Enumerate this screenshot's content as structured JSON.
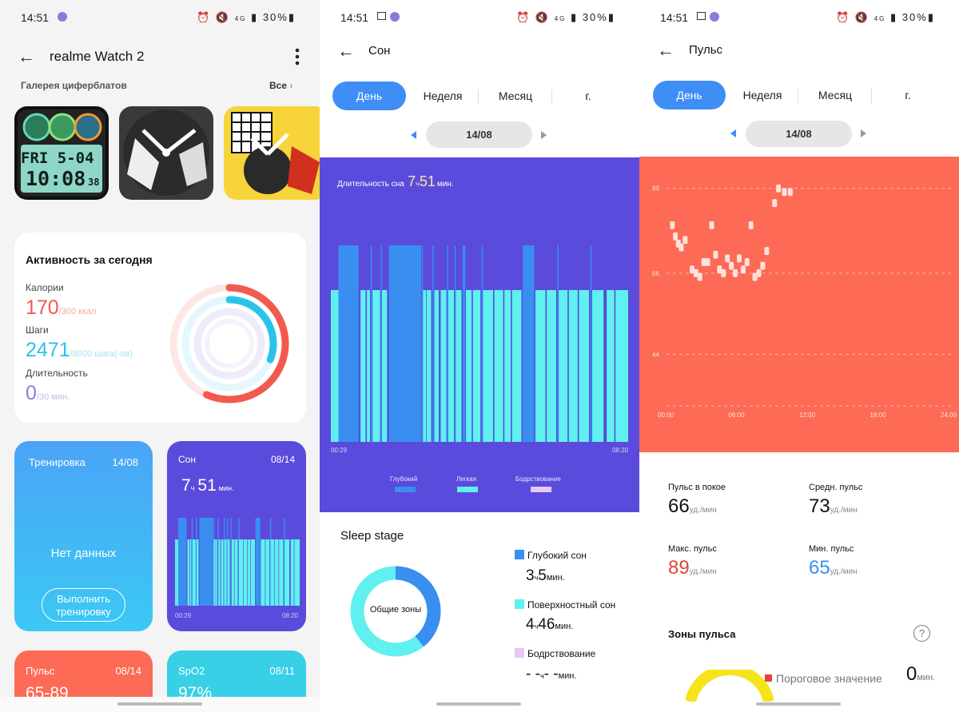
{
  "colors": {
    "accent": "#3f8ef5",
    "sleep_bg": "#5a4bdc",
    "deep": "#3a8ef0",
    "light": "#5ff0ef",
    "awake": "#e8c7f7",
    "pulse_bg": "#fd6a55",
    "calorie": "#f25a50",
    "steps": "#2bc3ea",
    "duration": "#8d7dd8"
  },
  "status": {
    "time": "14:51",
    "battery": "30%",
    "net": "4G"
  },
  "p1": {
    "title": "realme Watch 2",
    "gallery_label": "Галерея циферблатов",
    "gallery_all": "Все",
    "face1": {
      "day": "FRI 5-04",
      "time": "10:08",
      "sec": "38"
    },
    "activity": {
      "title": "Активность за сегодня",
      "cal_label": "Калории",
      "cal_value": "170",
      "cal_goal": "/300 ккал",
      "steps_label": "Шаги",
      "steps_value": "2471",
      "steps_goal": "/8000 шага(-ов)",
      "dur_label": "Длительность",
      "dur_value": "0",
      "dur_goal": "/30 мин."
    },
    "training": {
      "title": "Тренировка",
      "date": "14/08",
      "nodata": "Нет данных",
      "button": "Выполнить тренировку"
    },
    "sleep": {
      "title": "Сон",
      "date": "08/14",
      "hours": "7",
      "h_unit": "ч",
      "mins": "51",
      "m_unit": "мин.",
      "start": "00:29",
      "end": "08:20"
    },
    "pulse": {
      "title": "Пульс",
      "date": "08/14",
      "value": "65-89"
    },
    "spo2": {
      "title": "SpO2",
      "date": "08/11",
      "value": "97%"
    }
  },
  "p2": {
    "title": "Сон",
    "tabs": [
      "День",
      "Неделя",
      "Месяц",
      "г."
    ],
    "date": "14/08",
    "duration_label": "Длительность сна",
    "hours": "7",
    "h_unit": "ч",
    "mins": "51",
    "m_unit": "мин.",
    "start": "00:29",
    "end": "08:20",
    "legend": {
      "deep": "Глубокий",
      "light": "Легкая",
      "awake": "Бодрствование"
    },
    "stage_title": "Sleep stage",
    "donut_label": "Общие зоны",
    "deep_label": "Глубокий сон",
    "deep_h": "3",
    "deep_m": "5",
    "light_label": "Поверхностный сон",
    "light_h": "4",
    "light_m": "46",
    "awake_label": "Бодрствование",
    "awake_h": "- -",
    "awake_m": "- -",
    "h_unit_s": "ч",
    "m_unit_s": "мин."
  },
  "p3": {
    "title": "Пульс",
    "tabs": [
      "День",
      "Неделя",
      "Месяц",
      "г."
    ],
    "date": "14/08",
    "rest_label": "Пульс в покое",
    "rest_value": "66",
    "avg_label": "Средн. пульс",
    "avg_value": "73",
    "max_label": "Макс. пульс",
    "max_value": "89",
    "min_label": "Мин. пульс",
    "min_value": "65",
    "unit": "уд./мин",
    "zones_title": "Зоны пульса",
    "threshold_label": "Пороговое значение",
    "threshold_value": "0",
    "threshold_unit": "мин."
  },
  "chart_data": [
    {
      "type": "bar",
      "title": "Длительность сна 7ч51мин.",
      "x_range": [
        "00:29",
        "08:20"
      ],
      "series": [
        {
          "name": "Глубокий"
        },
        {
          "name": "Легкая"
        },
        {
          "name": "Бодрствование"
        }
      ],
      "segments": [
        {
          "start": "00:29",
          "end": "00:34",
          "stage": "light"
        },
        {
          "start": "00:34",
          "end": "00:41",
          "stage": "light"
        },
        {
          "start": "00:41",
          "end": "01:13",
          "stage": "deep"
        },
        {
          "start": "01:16",
          "end": "01:24",
          "stage": "light"
        },
        {
          "start": "01:26",
          "end": "01:31",
          "stage": "light"
        },
        {
          "start": "01:32",
          "end": "01:34",
          "stage": "deep"
        },
        {
          "start": "01:35",
          "end": "01:47",
          "stage": "light"
        },
        {
          "start": "01:48",
          "end": "01:49",
          "stage": "deep"
        },
        {
          "start": "01:50",
          "end": "01:58",
          "stage": "light"
        },
        {
          "start": "02:01",
          "end": "02:52",
          "stage": "deep"
        },
        {
          "start": "02:53",
          "end": "02:54",
          "stage": "deep"
        },
        {
          "start": "02:55",
          "end": "03:00",
          "stage": "light"
        },
        {
          "start": "03:01",
          "end": "03:08",
          "stage": "light"
        },
        {
          "start": "03:10",
          "end": "03:12",
          "stage": "deep"
        },
        {
          "start": "03:13",
          "end": "03:20",
          "stage": "light"
        },
        {
          "start": "03:23",
          "end": "03:32",
          "stage": "light"
        },
        {
          "start": "03:33",
          "end": "03:34",
          "stage": "deep"
        },
        {
          "start": "03:35",
          "end": "03:44",
          "stage": "light"
        },
        {
          "start": "03:45",
          "end": "03:46",
          "stage": "deep"
        },
        {
          "start": "03:47",
          "end": "03:56",
          "stage": "light"
        },
        {
          "start": "03:58",
          "end": "04:02",
          "stage": "deep"
        },
        {
          "start": "04:03",
          "end": "04:12",
          "stage": "light"
        },
        {
          "start": "04:14",
          "end": "04:26",
          "stage": "light"
        },
        {
          "start": "04:28",
          "end": "04:29",
          "stage": "deep"
        },
        {
          "start": "04:30",
          "end": "04:46",
          "stage": "light"
        },
        {
          "start": "04:48",
          "end": "05:02",
          "stage": "light"
        },
        {
          "start": "05:04",
          "end": "05:14",
          "stage": "light"
        },
        {
          "start": "05:16",
          "end": "05:31",
          "stage": "light"
        },
        {
          "start": "05:33",
          "end": "05:51",
          "stage": "deep"
        },
        {
          "start": "05:53",
          "end": "06:09",
          "stage": "light"
        },
        {
          "start": "06:11",
          "end": "06:26",
          "stage": "light"
        },
        {
          "start": "06:28",
          "end": "06:29",
          "stage": "deep"
        },
        {
          "start": "06:30",
          "end": "06:44",
          "stage": "light"
        },
        {
          "start": "06:46",
          "end": "07:00",
          "stage": "light"
        },
        {
          "start": "07:02",
          "end": "07:18",
          "stage": "light"
        },
        {
          "start": "07:20",
          "end": "07:22",
          "stage": "deep"
        },
        {
          "start": "07:23",
          "end": "07:41",
          "stage": "light"
        },
        {
          "start": "07:46",
          "end": "07:58",
          "stage": "light"
        },
        {
          "start": "08:00",
          "end": "08:20",
          "stage": "light"
        }
      ]
    },
    {
      "type": "pie",
      "title": "Sleep stage",
      "categories": [
        "Глубокий сон",
        "Поверхностный сон",
        "Бодрствование"
      ],
      "values": [
        185,
        286,
        0
      ]
    },
    {
      "type": "scatter",
      "x_ticks": [
        "00:00",
        "06:00",
        "12:00",
        "18:00",
        "24:00"
      ],
      "y_ticks": [
        44,
        66,
        89
      ],
      "ylim": [
        30,
        95
      ],
      "points": [
        {
          "x": "00:30",
          "y": 79
        },
        {
          "x": "00:45",
          "y": 76
        },
        {
          "x": "01:00",
          "y": 74
        },
        {
          "x": "01:15",
          "y": 73
        },
        {
          "x": "01:35",
          "y": 75
        },
        {
          "x": "02:10",
          "y": 67
        },
        {
          "x": "02:30",
          "y": 66
        },
        {
          "x": "02:50",
          "y": 65
        },
        {
          "x": "03:10",
          "y": 69
        },
        {
          "x": "03:30",
          "y": 69
        },
        {
          "x": "03:50",
          "y": 79
        },
        {
          "x": "04:10",
          "y": 71
        },
        {
          "x": "04:30",
          "y": 67
        },
        {
          "x": "04:50",
          "y": 66
        },
        {
          "x": "05:10",
          "y": 70
        },
        {
          "x": "05:30",
          "y": 68
        },
        {
          "x": "05:50",
          "y": 66
        },
        {
          "x": "06:10",
          "y": 70
        },
        {
          "x": "06:30",
          "y": 67
        },
        {
          "x": "06:50",
          "y": 69
        },
        {
          "x": "07:10",
          "y": 79
        },
        {
          "x": "07:30",
          "y": 65
        },
        {
          "x": "07:50",
          "y": 66
        },
        {
          "x": "08:10",
          "y": 68
        },
        {
          "x": "08:30",
          "y": 72
        },
        {
          "x": "09:10",
          "y": 85
        },
        {
          "x": "09:30",
          "y": 89
        },
        {
          "x": "10:00",
          "y": 88
        },
        {
          "x": "10:30",
          "y": 88
        }
      ]
    }
  ]
}
